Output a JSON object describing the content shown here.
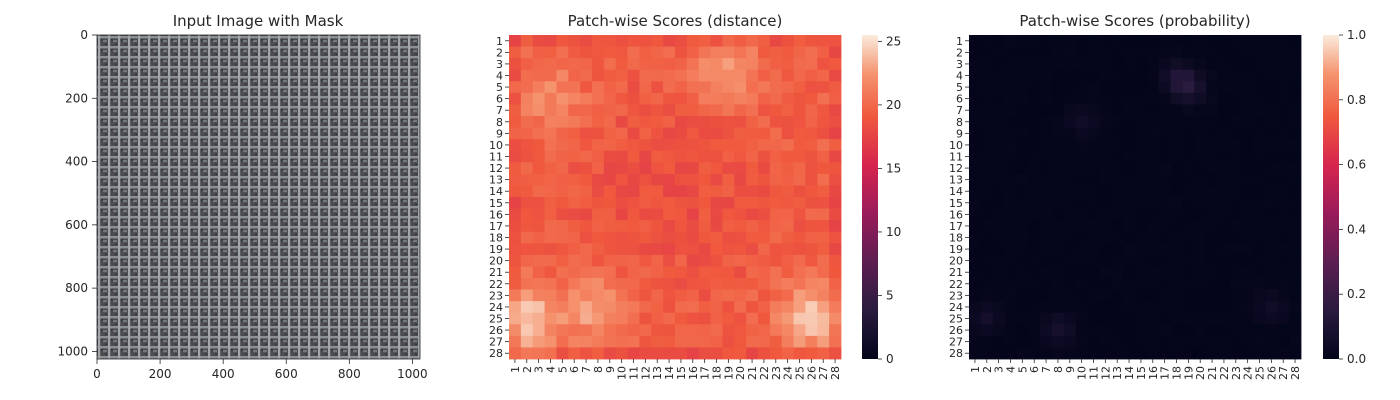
{
  "figure": {
    "panels": [
      "input-image",
      "distance-heatmap",
      "probability-heatmap"
    ]
  },
  "chart_data": [
    {
      "type": "image",
      "title": "Input Image with Mask",
      "xlabel": "",
      "ylabel": "",
      "xlim": [
        0,
        1024
      ],
      "ylim": [
        1024,
        0
      ],
      "xticks": [
        0,
        200,
        400,
        600,
        800,
        1000
      ],
      "yticks": [
        0,
        200,
        400,
        600,
        800,
        1000
      ],
      "description_colors": {
        "base": "#55555a",
        "light_thread": "#9aa0a3",
        "dark_gap": "#2b2b2e"
      }
    },
    {
      "type": "heatmap",
      "title": "Patch-wise Scores (distance)",
      "xlabel": "",
      "ylabel": "",
      "rows": 28,
      "cols": 28,
      "xticklabels": [
        "1",
        "2",
        "3",
        "4",
        "5",
        "6",
        "7",
        "8",
        "9",
        "10",
        "11",
        "12",
        "13",
        "14",
        "15",
        "16",
        "17",
        "18",
        "19",
        "20",
        "21",
        "22",
        "23",
        "24",
        "25",
        "26",
        "27",
        "28"
      ],
      "yticklabels": [
        "1",
        "2",
        "3",
        "4",
        "5",
        "6",
        "7",
        "8",
        "9",
        "10",
        "11",
        "12",
        "13",
        "14",
        "15",
        "16",
        "17",
        "18",
        "19",
        "20",
        "21",
        "22",
        "23",
        "24",
        "25",
        "26",
        "27",
        "28"
      ],
      "colorbar": {
        "min": 0,
        "max": 25.5,
        "ticks": [
          "0",
          "5",
          "10",
          "15",
          "20",
          "25"
        ],
        "colormap": "rocket"
      },
      "value_range_estimate": [
        17.5,
        25.5
      ],
      "hotspots": [
        {
          "row": 4,
          "col": 19,
          "value": 23.5
        },
        {
          "row": 25,
          "col": 2,
          "value": 25.0
        },
        {
          "row": 25,
          "col": 26,
          "value": 24.5
        },
        {
          "row": 24,
          "col": 8,
          "value": 23.5
        },
        {
          "row": 6,
          "col": 4,
          "value": 22.5
        }
      ]
    },
    {
      "type": "heatmap",
      "title": "Patch-wise Scores (probability)",
      "xlabel": "",
      "ylabel": "",
      "rows": 28,
      "cols": 28,
      "xticklabels": [
        "1",
        "2",
        "3",
        "4",
        "5",
        "6",
        "7",
        "8",
        "9",
        "10",
        "11",
        "12",
        "13",
        "14",
        "15",
        "16",
        "17",
        "18",
        "19",
        "20",
        "21",
        "22",
        "23",
        "24",
        "25",
        "26",
        "27",
        "28"
      ],
      "yticklabels": [
        "1",
        "2",
        "3",
        "4",
        "5",
        "6",
        "7",
        "8",
        "9",
        "10",
        "11",
        "12",
        "13",
        "14",
        "15",
        "16",
        "17",
        "18",
        "19",
        "20",
        "21",
        "22",
        "23",
        "24",
        "25",
        "26",
        "27",
        "28"
      ],
      "colorbar": {
        "min": 0,
        "max": 1,
        "ticks": [
          "0.0",
          "0.2",
          "0.4",
          "0.6",
          "0.8",
          "1.0"
        ],
        "colormap": "rocket"
      },
      "value_range_estimate": [
        0.0,
        0.12
      ],
      "hotspots": [
        {
          "row": 5,
          "col": 19,
          "value": 0.12
        },
        {
          "row": 4,
          "col": 18,
          "value": 0.08
        },
        {
          "row": 26,
          "col": 8,
          "value": 0.07
        },
        {
          "row": 25,
          "col": 2,
          "value": 0.06
        },
        {
          "row": 24,
          "col": 26,
          "value": 0.05
        },
        {
          "row": 8,
          "col": 10,
          "value": 0.04
        }
      ]
    }
  ]
}
